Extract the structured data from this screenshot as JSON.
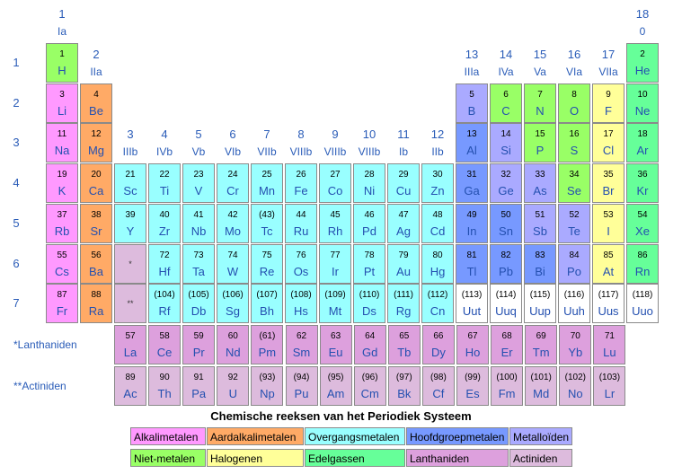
{
  "groups": [
    {
      "n": "1",
      "r": "Ia"
    },
    {
      "n": "2",
      "r": "IIa"
    },
    {
      "n": "3",
      "r": "IIIb"
    },
    {
      "n": "4",
      "r": "IVb"
    },
    {
      "n": "5",
      "r": "Vb"
    },
    {
      "n": "6",
      "r": "VIb"
    },
    {
      "n": "7",
      "r": "VIIb"
    },
    {
      "n": "8",
      "r": "VIIIb"
    },
    {
      "n": "9",
      "r": "VIIIb"
    },
    {
      "n": "10",
      "r": "VIIIb"
    },
    {
      "n": "11",
      "r": "Ib"
    },
    {
      "n": "12",
      "r": "IIb"
    },
    {
      "n": "13",
      "r": "IIIa"
    },
    {
      "n": "14",
      "r": "IVa"
    },
    {
      "n": "15",
      "r": "Va"
    },
    {
      "n": "16",
      "r": "VIa"
    },
    {
      "n": "17",
      "r": "VIIa"
    },
    {
      "n": "18",
      "r": "0"
    }
  ],
  "periods": [
    "1",
    "2",
    "3",
    "4",
    "5",
    "6",
    "7"
  ],
  "colors": {
    "alkali": "#ff99ff",
    "alkaline": "#ffaa66",
    "transition": "#99ffff",
    "poor": "#7799ff",
    "metalloid": "#aaaaff",
    "nonmetal": "#99ff66",
    "halogen": "#ffff99",
    "noble": "#66ff99",
    "lanthanide": "#dda0dd",
    "actinide": "#ddbbdd",
    "placeholder": "#ddbbdd",
    "unknown": "#ffffff"
  },
  "elements": [
    {
      "z": "1",
      "s": "H",
      "g": 1,
      "p": 1,
      "c": "nonmetal"
    },
    {
      "z": "2",
      "s": "He",
      "g": 18,
      "p": 1,
      "c": "noble"
    },
    {
      "z": "3",
      "s": "Li",
      "g": 1,
      "p": 2,
      "c": "alkali"
    },
    {
      "z": "4",
      "s": "Be",
      "g": 2,
      "p": 2,
      "c": "alkaline"
    },
    {
      "z": "5",
      "s": "B",
      "g": 13,
      "p": 2,
      "c": "metalloid"
    },
    {
      "z": "6",
      "s": "C",
      "g": 14,
      "p": 2,
      "c": "nonmetal"
    },
    {
      "z": "7",
      "s": "N",
      "g": 15,
      "p": 2,
      "c": "nonmetal"
    },
    {
      "z": "8",
      "s": "O",
      "g": 16,
      "p": 2,
      "c": "nonmetal"
    },
    {
      "z": "9",
      "s": "F",
      "g": 17,
      "p": 2,
      "c": "halogen"
    },
    {
      "z": "10",
      "s": "Ne",
      "g": 18,
      "p": 2,
      "c": "noble"
    },
    {
      "z": "11",
      "s": "Na",
      "g": 1,
      "p": 3,
      "c": "alkali"
    },
    {
      "z": "12",
      "s": "Mg",
      "g": 2,
      "p": 3,
      "c": "alkaline"
    },
    {
      "z": "13",
      "s": "Al",
      "g": 13,
      "p": 3,
      "c": "poor"
    },
    {
      "z": "14",
      "s": "Si",
      "g": 14,
      "p": 3,
      "c": "metalloid"
    },
    {
      "z": "15",
      "s": "P",
      "g": 15,
      "p": 3,
      "c": "nonmetal"
    },
    {
      "z": "16",
      "s": "S",
      "g": 16,
      "p": 3,
      "c": "nonmetal"
    },
    {
      "z": "17",
      "s": "Cl",
      "g": 17,
      "p": 3,
      "c": "halogen"
    },
    {
      "z": "18",
      "s": "Ar",
      "g": 18,
      "p": 3,
      "c": "noble"
    },
    {
      "z": "19",
      "s": "K",
      "g": 1,
      "p": 4,
      "c": "alkali"
    },
    {
      "z": "20",
      "s": "Ca",
      "g": 2,
      "p": 4,
      "c": "alkaline"
    },
    {
      "z": "21",
      "s": "Sc",
      "g": 3,
      "p": 4,
      "c": "transition"
    },
    {
      "z": "22",
      "s": "Ti",
      "g": 4,
      "p": 4,
      "c": "transition"
    },
    {
      "z": "23",
      "s": "V",
      "g": 5,
      "p": 4,
      "c": "transition"
    },
    {
      "z": "24",
      "s": "Cr",
      "g": 6,
      "p": 4,
      "c": "transition"
    },
    {
      "z": "25",
      "s": "Mn",
      "g": 7,
      "p": 4,
      "c": "transition"
    },
    {
      "z": "26",
      "s": "Fe",
      "g": 8,
      "p": 4,
      "c": "transition"
    },
    {
      "z": "27",
      "s": "Co",
      "g": 9,
      "p": 4,
      "c": "transition"
    },
    {
      "z": "28",
      "s": "Ni",
      "g": 10,
      "p": 4,
      "c": "transition"
    },
    {
      "z": "29",
      "s": "Cu",
      "g": 11,
      "p": 4,
      "c": "transition"
    },
    {
      "z": "30",
      "s": "Zn",
      "g": 12,
      "p": 4,
      "c": "transition"
    },
    {
      "z": "31",
      "s": "Ga",
      "g": 13,
      "p": 4,
      "c": "poor"
    },
    {
      "z": "32",
      "s": "Ge",
      "g": 14,
      "p": 4,
      "c": "metalloid"
    },
    {
      "z": "33",
      "s": "As",
      "g": 15,
      "p": 4,
      "c": "metalloid"
    },
    {
      "z": "34",
      "s": "Se",
      "g": 16,
      "p": 4,
      "c": "nonmetal"
    },
    {
      "z": "35",
      "s": "Br",
      "g": 17,
      "p": 4,
      "c": "halogen"
    },
    {
      "z": "36",
      "s": "Kr",
      "g": 18,
      "p": 4,
      "c": "noble"
    },
    {
      "z": "37",
      "s": "Rb",
      "g": 1,
      "p": 5,
      "c": "alkali"
    },
    {
      "z": "38",
      "s": "Sr",
      "g": 2,
      "p": 5,
      "c": "alkaline"
    },
    {
      "z": "39",
      "s": "Y",
      "g": 3,
      "p": 5,
      "c": "transition"
    },
    {
      "z": "40",
      "s": "Zr",
      "g": 4,
      "p": 5,
      "c": "transition"
    },
    {
      "z": "41",
      "s": "Nb",
      "g": 5,
      "p": 5,
      "c": "transition"
    },
    {
      "z": "42",
      "s": "Mo",
      "g": 6,
      "p": 5,
      "c": "transition"
    },
    {
      "z": "(43)",
      "s": "Tc",
      "g": 7,
      "p": 5,
      "c": "transition"
    },
    {
      "z": "44",
      "s": "Ru",
      "g": 8,
      "p": 5,
      "c": "transition"
    },
    {
      "z": "45",
      "s": "Rh",
      "g": 9,
      "p": 5,
      "c": "transition"
    },
    {
      "z": "46",
      "s": "Pd",
      "g": 10,
      "p": 5,
      "c": "transition"
    },
    {
      "z": "47",
      "s": "Ag",
      "g": 11,
      "p": 5,
      "c": "transition"
    },
    {
      "z": "48",
      "s": "Cd",
      "g": 12,
      "p": 5,
      "c": "transition"
    },
    {
      "z": "49",
      "s": "In",
      "g": 13,
      "p": 5,
      "c": "poor"
    },
    {
      "z": "50",
      "s": "Sn",
      "g": 14,
      "p": 5,
      "c": "poor"
    },
    {
      "z": "51",
      "s": "Sb",
      "g": 15,
      "p": 5,
      "c": "metalloid"
    },
    {
      "z": "52",
      "s": "Te",
      "g": 16,
      "p": 5,
      "c": "metalloid"
    },
    {
      "z": "53",
      "s": "I",
      "g": 17,
      "p": 5,
      "c": "halogen"
    },
    {
      "z": "54",
      "s": "Xe",
      "g": 18,
      "p": 5,
      "c": "noble"
    },
    {
      "z": "55",
      "s": "Cs",
      "g": 1,
      "p": 6,
      "c": "alkali"
    },
    {
      "z": "56",
      "s": "Ba",
      "g": 2,
      "p": 6,
      "c": "alkaline"
    },
    {
      "z": "",
      "s": "*",
      "g": 3,
      "p": 6,
      "c": "placeholder",
      "ph": true
    },
    {
      "z": "72",
      "s": "Hf",
      "g": 4,
      "p": 6,
      "c": "transition"
    },
    {
      "z": "73",
      "s": "Ta",
      "g": 5,
      "p": 6,
      "c": "transition"
    },
    {
      "z": "74",
      "s": "W",
      "g": 6,
      "p": 6,
      "c": "transition"
    },
    {
      "z": "75",
      "s": "Re",
      "g": 7,
      "p": 6,
      "c": "transition"
    },
    {
      "z": "76",
      "s": "Os",
      "g": 8,
      "p": 6,
      "c": "transition"
    },
    {
      "z": "77",
      "s": "Ir",
      "g": 9,
      "p": 6,
      "c": "transition"
    },
    {
      "z": "78",
      "s": "Pt",
      "g": 10,
      "p": 6,
      "c": "transition"
    },
    {
      "z": "79",
      "s": "Au",
      "g": 11,
      "p": 6,
      "c": "transition"
    },
    {
      "z": "80",
      "s": "Hg",
      "g": 12,
      "p": 6,
      "c": "transition"
    },
    {
      "z": "81",
      "s": "Tl",
      "g": 13,
      "p": 6,
      "c": "poor"
    },
    {
      "z": "82",
      "s": "Pb",
      "g": 14,
      "p": 6,
      "c": "poor"
    },
    {
      "z": "83",
      "s": "Bi",
      "g": 15,
      "p": 6,
      "c": "poor"
    },
    {
      "z": "84",
      "s": "Po",
      "g": 16,
      "p": 6,
      "c": "metalloid"
    },
    {
      "z": "85",
      "s": "At",
      "g": 17,
      "p": 6,
      "c": "halogen"
    },
    {
      "z": "86",
      "s": "Rn",
      "g": 18,
      "p": 6,
      "c": "noble"
    },
    {
      "z": "87",
      "s": "Fr",
      "g": 1,
      "p": 7,
      "c": "alkali"
    },
    {
      "z": "88",
      "s": "Ra",
      "g": 2,
      "p": 7,
      "c": "alkaline"
    },
    {
      "z": "",
      "s": "**",
      "g": 3,
      "p": 7,
      "c": "placeholder",
      "ph": true
    },
    {
      "z": "(104)",
      "s": "Rf",
      "g": 4,
      "p": 7,
      "c": "transition"
    },
    {
      "z": "(105)",
      "s": "Db",
      "g": 5,
      "p": 7,
      "c": "transition"
    },
    {
      "z": "(106)",
      "s": "Sg",
      "g": 6,
      "p": 7,
      "c": "transition"
    },
    {
      "z": "(107)",
      "s": "Bh",
      "g": 7,
      "p": 7,
      "c": "transition"
    },
    {
      "z": "(108)",
      "s": "Hs",
      "g": 8,
      "p": 7,
      "c": "transition"
    },
    {
      "z": "(109)",
      "s": "Mt",
      "g": 9,
      "p": 7,
      "c": "transition"
    },
    {
      "z": "(110)",
      "s": "Ds",
      "g": 10,
      "p": 7,
      "c": "transition"
    },
    {
      "z": "(111)",
      "s": "Rg",
      "g": 11,
      "p": 7,
      "c": "transition"
    },
    {
      "z": "(112)",
      "s": "Cn",
      "g": 12,
      "p": 7,
      "c": "transition"
    },
    {
      "z": "(113)",
      "s": "Uut",
      "g": 13,
      "p": 7,
      "c": "unknown"
    },
    {
      "z": "(114)",
      "s": "Uuq",
      "g": 14,
      "p": 7,
      "c": "unknown"
    },
    {
      "z": "(115)",
      "s": "Uup",
      "g": 15,
      "p": 7,
      "c": "unknown"
    },
    {
      "z": "(116)",
      "s": "Uuh",
      "g": 16,
      "p": 7,
      "c": "unknown"
    },
    {
      "z": "(117)",
      "s": "Uus",
      "g": 17,
      "p": 7,
      "c": "unknown"
    },
    {
      "z": "(118)",
      "s": "Uuo",
      "g": 18,
      "p": 7,
      "c": "unknown"
    }
  ],
  "series": {
    "lanthanides": {
      "label": "*Lanthaniden",
      "c": "lanthanide",
      "items": [
        {
          "z": "57",
          "s": "La"
        },
        {
          "z": "58",
          "s": "Ce"
        },
        {
          "z": "59",
          "s": "Pr"
        },
        {
          "z": "60",
          "s": "Nd"
        },
        {
          "z": "(61)",
          "s": "Pm"
        },
        {
          "z": "62",
          "s": "Sm"
        },
        {
          "z": "63",
          "s": "Eu"
        },
        {
          "z": "64",
          "s": "Gd"
        },
        {
          "z": "65",
          "s": "Tb"
        },
        {
          "z": "66",
          "s": "Dy"
        },
        {
          "z": "67",
          "s": "Ho"
        },
        {
          "z": "68",
          "s": "Er"
        },
        {
          "z": "69",
          "s": "Tm"
        },
        {
          "z": "70",
          "s": "Yb"
        },
        {
          "z": "71",
          "s": "Lu"
        }
      ]
    },
    "actinides": {
      "label": "**Actiniden",
      "c": "actinide",
      "items": [
        {
          "z": "89",
          "s": "Ac"
        },
        {
          "z": "90",
          "s": "Th"
        },
        {
          "z": "91",
          "s": "Pa"
        },
        {
          "z": "92",
          "s": "U"
        },
        {
          "z": "(93)",
          "s": "Np"
        },
        {
          "z": "(94)",
          "s": "Pu"
        },
        {
          "z": "(95)",
          "s": "Am"
        },
        {
          "z": "(96)",
          "s": "Cm"
        },
        {
          "z": "(97)",
          "s": "Bk"
        },
        {
          "z": "(98)",
          "s": "Cf"
        },
        {
          "z": "(99)",
          "s": "Es"
        },
        {
          "z": "(100)",
          "s": "Fm"
        },
        {
          "z": "(101)",
          "s": "Md"
        },
        {
          "z": "(102)",
          "s": "No"
        },
        {
          "z": "(103)",
          "s": "Lr"
        }
      ]
    }
  },
  "legend": {
    "title": "Chemische reeksen van het Periodiek Systeem",
    "rows": [
      [
        {
          "label": "Alkalimetalen",
          "c": "alkali"
        },
        {
          "label": "Aardalkalimetalen",
          "c": "alkaline"
        },
        {
          "label": "Overgangsmetalen",
          "c": "transition"
        },
        {
          "label": "Hoofdgroepmetalen",
          "c": "poor"
        },
        {
          "label": "Metalloïden",
          "c": "metalloid"
        }
      ],
      [
        {
          "label": "Niet-metalen",
          "c": "nonmetal"
        },
        {
          "label": "Halogenen",
          "c": "halogen"
        },
        {
          "label": "Edelgassen",
          "c": "noble"
        },
        {
          "label": "Lanthaniden",
          "c": "lanthanide"
        },
        {
          "label": "Actiniden",
          "c": "actinide"
        }
      ]
    ]
  }
}
